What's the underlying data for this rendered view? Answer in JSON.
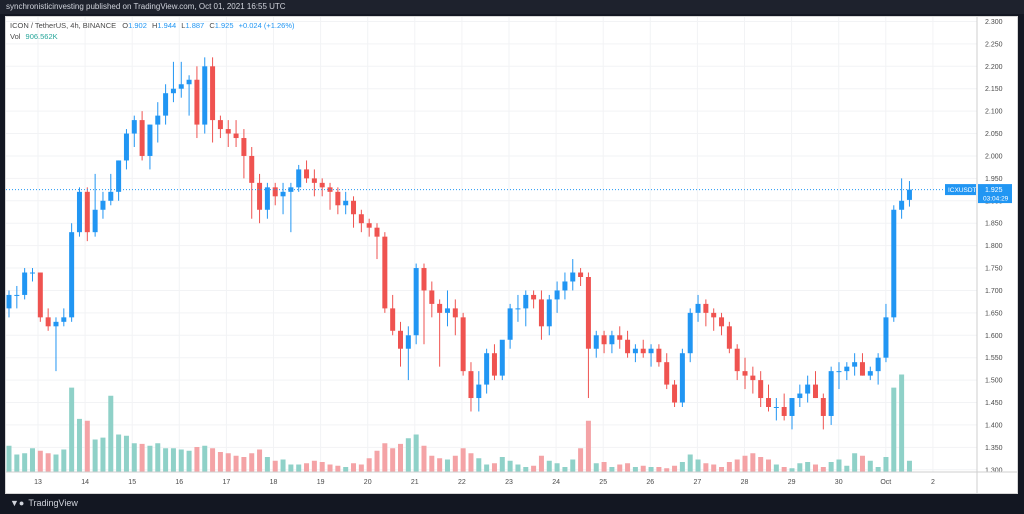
{
  "publisher": "synchronisticinvesting published on TradingView.com, Oct 01, 2021 16:55 UTC",
  "footer": {
    "brand": "TradingView",
    "logo_icon": "tradingview-logo-icon"
  },
  "legend": {
    "symbol": "ICON / TetherUS, 4h, BINANCE",
    "open_label": "O",
    "open": "1.902",
    "high_label": "H",
    "high": "1.944",
    "low_label": "L",
    "low": "1.887",
    "close_label": "C",
    "close": "1.925",
    "change": "+0.024 (+1.26%)",
    "vol_label": "Vol",
    "vol": "906.562K"
  },
  "price_tag": {
    "symbol": "ICXUSDT",
    "price": "1.925",
    "countdown": "03:04:29"
  },
  "colors": {
    "up": "#2196f3",
    "down": "#ef5350",
    "vol_up": "#8fd1c8",
    "vol_down": "#f4a3a6",
    "price_line": "#2196f3",
    "text": "#4a4a4a"
  },
  "chart_data": {
    "type": "candlestick",
    "symbol": "ICON / TetherUS",
    "interval": "4h",
    "exchange": "BINANCE",
    "y_ticks": [
      "2.300",
      "2.250",
      "2.200",
      "2.150",
      "2.100",
      "2.050",
      "2.000",
      "1.950",
      "1.900",
      "1.850",
      "1.800",
      "1.750",
      "1.700",
      "1.650",
      "1.600",
      "1.550",
      "1.500",
      "1.450",
      "1.400",
      "1.350",
      "1.300"
    ],
    "x_ticks": [
      "13",
      "14",
      "15",
      "16",
      "17",
      "18",
      "19",
      "20",
      "21",
      "22",
      "23",
      "24",
      "25",
      "26",
      "27",
      "28",
      "29",
      "30",
      "Oct",
      "2"
    ],
    "ylim": [
      1.295,
      2.31
    ],
    "last_price": 1.925,
    "candles": [
      [
        1.66,
        1.7,
        1.64,
        1.69,
        42
      ],
      [
        1.69,
        1.71,
        1.66,
        1.69,
        28
      ],
      [
        1.69,
        1.75,
        1.68,
        1.74,
        30
      ],
      [
        1.74,
        1.75,
        1.72,
        1.74,
        38
      ],
      [
        1.74,
        1.74,
        1.63,
        1.64,
        34
      ],
      [
        1.64,
        1.66,
        1.61,
        1.62,
        30
      ],
      [
        1.62,
        1.64,
        1.52,
        1.63,
        28
      ],
      [
        1.63,
        1.66,
        1.62,
        1.64,
        36
      ],
      [
        1.64,
        1.85,
        1.63,
        1.83,
        135
      ],
      [
        1.83,
        1.93,
        1.82,
        1.92,
        85
      ],
      [
        1.92,
        1.93,
        1.81,
        1.83,
        82
      ],
      [
        1.83,
        1.96,
        1.82,
        1.88,
        52
      ],
      [
        1.88,
        1.92,
        1.86,
        1.9,
        55
      ],
      [
        1.9,
        1.96,
        1.89,
        1.92,
        122
      ],
      [
        1.92,
        1.99,
        1.9,
        1.99,
        60
      ],
      [
        1.99,
        2.06,
        1.97,
        2.05,
        58
      ],
      [
        2.05,
        2.09,
        2.02,
        2.08,
        46
      ],
      [
        2.08,
        2.1,
        1.99,
        2.0,
        45
      ],
      [
        2.0,
        2.07,
        1.97,
        2.07,
        42
      ],
      [
        2.07,
        2.12,
        2.03,
        2.09,
        46
      ],
      [
        2.09,
        2.16,
        2.07,
        2.14,
        38
      ],
      [
        2.14,
        2.21,
        2.12,
        2.15,
        38
      ],
      [
        2.15,
        2.21,
        2.13,
        2.16,
        36
      ],
      [
        2.16,
        2.18,
        2.09,
        2.17,
        34
      ],
      [
        2.17,
        2.2,
        2.04,
        2.07,
        40
      ],
      [
        2.07,
        2.22,
        2.05,
        2.2,
        42
      ],
      [
        2.2,
        2.22,
        2.03,
        2.08,
        38
      ],
      [
        2.08,
        2.09,
        2.04,
        2.06,
        32
      ],
      [
        2.06,
        2.08,
        2.02,
        2.05,
        30
      ],
      [
        2.05,
        2.08,
        2.02,
        2.04,
        26
      ],
      [
        2.04,
        2.06,
        1.95,
        2.0,
        24
      ],
      [
        2.0,
        2.02,
        1.86,
        1.94,
        30
      ],
      [
        1.94,
        1.96,
        1.85,
        1.88,
        36
      ],
      [
        1.88,
        1.94,
        1.86,
        1.93,
        24
      ],
      [
        1.93,
        1.94,
        1.89,
        1.91,
        18
      ],
      [
        1.91,
        1.94,
        1.87,
        1.92,
        20
      ],
      [
        1.92,
        1.94,
        1.83,
        1.93,
        12
      ],
      [
        1.93,
        1.98,
        1.92,
        1.97,
        12
      ],
      [
        1.97,
        1.99,
        1.94,
        1.95,
        14
      ],
      [
        1.95,
        1.97,
        1.91,
        1.94,
        18
      ],
      [
        1.94,
        1.95,
        1.91,
        1.93,
        16
      ],
      [
        1.93,
        1.94,
        1.88,
        1.92,
        12
      ],
      [
        1.92,
        1.93,
        1.87,
        1.89,
        10
      ],
      [
        1.89,
        1.92,
        1.87,
        1.9,
        8
      ],
      [
        1.9,
        1.91,
        1.84,
        1.87,
        14
      ],
      [
        1.87,
        1.88,
        1.83,
        1.85,
        12
      ],
      [
        1.85,
        1.86,
        1.82,
        1.84,
        22
      ],
      [
        1.84,
        1.85,
        1.77,
        1.82,
        34
      ],
      [
        1.82,
        1.83,
        1.65,
        1.66,
        46
      ],
      [
        1.66,
        1.69,
        1.6,
        1.61,
        38
      ],
      [
        1.61,
        1.63,
        1.53,
        1.57,
        45
      ],
      [
        1.57,
        1.62,
        1.5,
        1.6,
        54
      ],
      [
        1.6,
        1.76,
        1.58,
        1.75,
        60
      ],
      [
        1.75,
        1.76,
        1.58,
        1.7,
        42
      ],
      [
        1.7,
        1.72,
        1.64,
        1.67,
        26
      ],
      [
        1.67,
        1.68,
        1.53,
        1.65,
        22
      ],
      [
        1.65,
        1.7,
        1.62,
        1.66,
        20
      ],
      [
        1.66,
        1.68,
        1.6,
        1.64,
        26
      ],
      [
        1.64,
        1.65,
        1.51,
        1.52,
        38
      ],
      [
        1.52,
        1.54,
        1.43,
        1.46,
        30
      ],
      [
        1.46,
        1.52,
        1.43,
        1.49,
        22
      ],
      [
        1.49,
        1.57,
        1.47,
        1.56,
        12
      ],
      [
        1.56,
        1.58,
        1.5,
        1.51,
        14
      ],
      [
        1.51,
        1.58,
        1.5,
        1.59,
        24
      ],
      [
        1.59,
        1.67,
        1.57,
        1.66,
        18
      ],
      [
        1.66,
        1.69,
        1.63,
        1.66,
        12
      ],
      [
        1.66,
        1.7,
        1.62,
        1.69,
        8
      ],
      [
        1.69,
        1.7,
        1.66,
        1.68,
        10
      ],
      [
        1.68,
        1.7,
        1.59,
        1.62,
        26
      ],
      [
        1.62,
        1.69,
        1.6,
        1.68,
        18
      ],
      [
        1.68,
        1.72,
        1.65,
        1.7,
        14
      ],
      [
        1.7,
        1.74,
        1.68,
        1.72,
        8
      ],
      [
        1.72,
        1.77,
        1.7,
        1.74,
        20
      ],
      [
        1.74,
        1.75,
        1.71,
        1.73,
        38
      ],
      [
        1.73,
        1.74,
        1.46,
        1.57,
        82
      ],
      [
        1.57,
        1.61,
        1.55,
        1.6,
        14
      ],
      [
        1.6,
        1.61,
        1.56,
        1.58,
        16
      ],
      [
        1.58,
        1.61,
        1.56,
        1.6,
        8
      ],
      [
        1.6,
        1.62,
        1.57,
        1.59,
        12
      ],
      [
        1.59,
        1.61,
        1.55,
        1.56,
        14
      ],
      [
        1.56,
        1.58,
        1.54,
        1.57,
        8
      ],
      [
        1.57,
        1.59,
        1.55,
        1.56,
        10
      ],
      [
        1.56,
        1.58,
        1.53,
        1.57,
        8
      ],
      [
        1.57,
        1.58,
        1.53,
        1.54,
        8
      ],
      [
        1.54,
        1.56,
        1.48,
        1.49,
        6
      ],
      [
        1.49,
        1.5,
        1.44,
        1.45,
        10
      ],
      [
        1.45,
        1.57,
        1.44,
        1.56,
        16
      ],
      [
        1.56,
        1.66,
        1.54,
        1.65,
        28
      ],
      [
        1.65,
        1.69,
        1.63,
        1.67,
        20
      ],
      [
        1.67,
        1.68,
        1.62,
        1.65,
        14
      ],
      [
        1.65,
        1.66,
        1.61,
        1.64,
        12
      ],
      [
        1.64,
        1.65,
        1.6,
        1.62,
        8
      ],
      [
        1.62,
        1.63,
        1.56,
        1.57,
        16
      ],
      [
        1.57,
        1.58,
        1.5,
        1.52,
        20
      ],
      [
        1.52,
        1.55,
        1.48,
        1.51,
        26
      ],
      [
        1.51,
        1.53,
        1.47,
        1.5,
        30
      ],
      [
        1.5,
        1.52,
        1.44,
        1.46,
        24
      ],
      [
        1.46,
        1.49,
        1.43,
        1.44,
        20
      ],
      [
        1.44,
        1.46,
        1.41,
        1.44,
        12
      ],
      [
        1.44,
        1.47,
        1.41,
        1.42,
        8
      ],
      [
        1.42,
        1.46,
        1.39,
        1.46,
        6
      ],
      [
        1.46,
        1.49,
        1.44,
        1.47,
        14
      ],
      [
        1.47,
        1.51,
        1.45,
        1.49,
        16
      ],
      [
        1.49,
        1.52,
        1.46,
        1.46,
        12
      ],
      [
        1.46,
        1.47,
        1.39,
        1.42,
        8
      ],
      [
        1.42,
        1.53,
        1.4,
        1.52,
        16
      ],
      [
        1.52,
        1.54,
        1.48,
        1.52,
        20
      ],
      [
        1.52,
        1.54,
        1.5,
        1.53,
        10
      ],
      [
        1.53,
        1.56,
        1.51,
        1.54,
        30
      ],
      [
        1.54,
        1.56,
        1.51,
        1.51,
        26
      ],
      [
        1.51,
        1.53,
        1.5,
        1.52,
        18
      ],
      [
        1.52,
        1.56,
        1.49,
        1.55,
        8
      ],
      [
        1.55,
        1.67,
        1.54,
        1.64,
        24
      ],
      [
        1.64,
        1.89,
        1.63,
        1.88,
        135
      ],
      [
        1.88,
        1.95,
        1.86,
        1.9,
        156
      ],
      [
        1.902,
        1.944,
        1.887,
        1.925,
        18
      ]
    ]
  }
}
